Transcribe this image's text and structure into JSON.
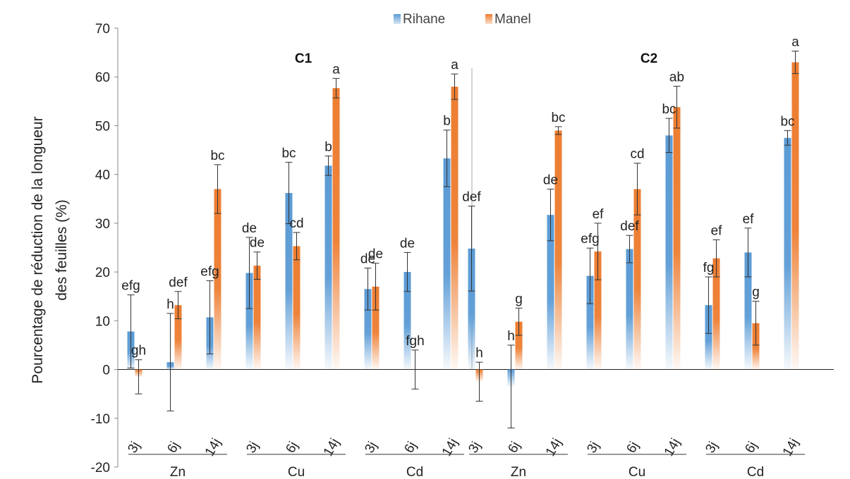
{
  "chart_data": {
    "type": "bar",
    "ylabel": [
      "Pourcentage de réduction de la  longueur",
      "des feuilles (%)"
    ],
    "ylim": [
      -20,
      70
    ],
    "yticks": [
      -20,
      -10,
      0,
      10,
      20,
      30,
      40,
      50,
      60,
      70
    ],
    "grid": false,
    "legend_position": "top",
    "colors": {
      "Rihane": "#5b9bd5",
      "Manel": "#ed7d31"
    },
    "conditions": [
      "C1",
      "C2"
    ],
    "metals": [
      "Zn",
      "Cu",
      "Cd"
    ],
    "days": [
      "3j",
      "6j",
      "14j"
    ],
    "series": [
      {
        "name": "Rihane",
        "values": [
          [
            [
              7.8,
              1.5,
              10.7
            ],
            [
              19.8,
              36.2,
              41.8
            ],
            [
              16.5,
              20.0,
              43.3
            ]
          ],
          [
            [
              24.8,
              -3.5,
              31.7
            ],
            [
              19.2,
              24.7,
              48.0
            ],
            [
              13.2,
              24.0,
              47.5
            ]
          ]
        ],
        "errors": [
          [
            [
              7.5,
              10.0,
              7.5
            ],
            [
              7.3,
              6.3,
              2.0
            ],
            [
              4.3,
              4.0,
              5.8
            ]
          ],
          [
            [
              8.7,
              8.5,
              5.3
            ],
            [
              5.7,
              2.8,
              3.5
            ],
            [
              5.8,
              5.0,
              1.5
            ]
          ]
        ],
        "labels": [
          [
            [
              "efg",
              "h",
              "efg"
            ],
            [
              "de",
              "bc",
              "b"
            ],
            [
              "de",
              "de",
              "b"
            ]
          ],
          [
            [
              "def",
              "h",
              "de"
            ],
            [
              "efg",
              "def",
              "bc"
            ],
            [
              "fg",
              "ef",
              "bc"
            ]
          ]
        ]
      },
      {
        "name": "Manel",
        "values": [
          [
            [
              -1.5,
              13.2,
              37.0
            ],
            [
              21.3,
              25.3,
              57.7
            ],
            [
              17.0,
              0.0,
              58.0
            ]
          ],
          [
            [
              -2.5,
              9.8,
              49.0
            ],
            [
              24.2,
              37.0,
              53.8
            ],
            [
              22.8,
              9.5,
              63.0
            ]
          ]
        ],
        "errors": [
          [
            [
              3.5,
              2.8,
              5.0
            ],
            [
              2.8,
              2.8,
              2.0
            ],
            [
              4.8,
              4.0,
              2.6
            ]
          ],
          [
            [
              4.0,
              2.8,
              0.8
            ],
            [
              5.8,
              5.3,
              4.3
            ],
            [
              3.8,
              4.5,
              2.3
            ]
          ]
        ],
        "labels": [
          [
            [
              "gh",
              "def",
              "bc"
            ],
            [
              "de",
              "cd",
              "a"
            ],
            [
              "de",
              "fgh",
              "a"
            ]
          ],
          [
            [
              "h",
              "g",
              "bc"
            ],
            [
              "ef",
              "cd",
              "ab"
            ],
            [
              "ef",
              "g",
              "a"
            ]
          ]
        ]
      }
    ]
  }
}
